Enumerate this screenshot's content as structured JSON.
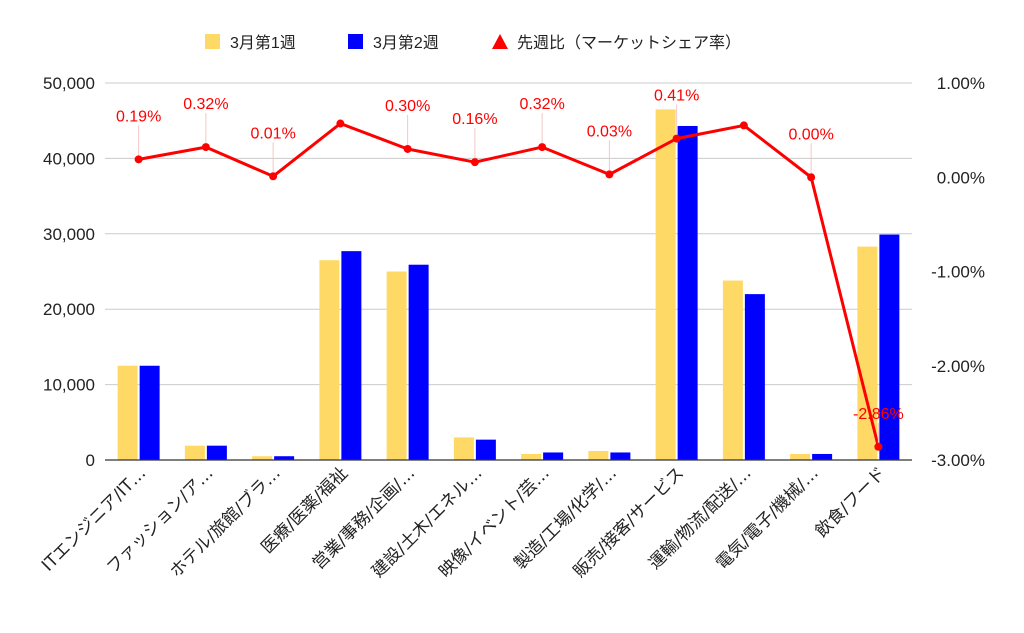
{
  "chart_data": {
    "type": "bar",
    "title": "",
    "legend": {
      "position": "top",
      "items": [
        {
          "label": "3月第1週",
          "color": "#FFD966",
          "shape": "square"
        },
        {
          "label": "3月第2週",
          "color": "#0000FF",
          "shape": "square"
        },
        {
          "label": "先週比（マーケットシェア率）",
          "color": "#FF0000",
          "shape": "triangle"
        }
      ]
    },
    "categories": [
      "ITエンジニア/IT…",
      "ファッション/ア…",
      "ホテル/旅館/ブラ…",
      "医療/医薬/福祉",
      "営業/事務/企画/…",
      "建設/土木/エネル…",
      "映像/イベント/芸…",
      "製造/工場/化学/…",
      "販売/接客/サービス",
      "運輸/物流/配送/…",
      "電気/電子/機械/…",
      "飲食/フード"
    ],
    "series": [
      {
        "name": "3月第1週",
        "type": "bar",
        "axis": "left",
        "color": "#FFD966",
        "values": [
          12500,
          1900,
          500,
          26500,
          25000,
          3000,
          800,
          1200,
          46500,
          23800,
          800,
          28300
        ]
      },
      {
        "name": "3月第2週",
        "type": "bar",
        "axis": "left",
        "color": "#0000FF",
        "values": [
          12500,
          1900,
          500,
          27700,
          25900,
          2700,
          1000,
          1000,
          44300,
          22000,
          800,
          29900
        ]
      },
      {
        "name": "先週比（マーケットシェア率）",
        "type": "line",
        "axis": "right",
        "color": "#FF0000",
        "values": [
          0.19,
          0.32,
          0.01,
          0.57,
          0.3,
          0.16,
          0.32,
          0.03,
          0.41,
          0.55,
          0.0,
          -2.86
        ],
        "labels": [
          "0.19%",
          "0.32%",
          "0.01%",
          "",
          "0.30%",
          "0.16%",
          "0.32%",
          "0.03%",
          "0.41%",
          "",
          "0.00%",
          "-2.86%"
        ]
      }
    ],
    "y_left": {
      "min": 0,
      "max": 50000,
      "ticks": [
        "0",
        "10,000",
        "20,000",
        "30,000",
        "40,000",
        "50,000"
      ]
    },
    "y_right": {
      "min": -3,
      "max": 1,
      "ticks": [
        "-3.00%",
        "-2.00%",
        "-1.00%",
        "0.00%",
        "1.00%"
      ]
    },
    "grid": true
  }
}
